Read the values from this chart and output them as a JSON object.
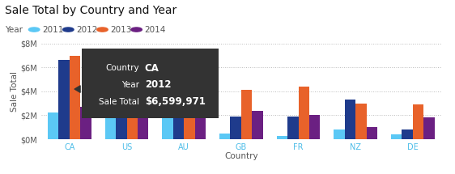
{
  "title": "Sale Total by Country and Year",
  "xlabel": "Country",
  "ylabel": "Sale Total",
  "categories": [
    "CA",
    "US",
    "AU",
    "GB",
    "FR",
    "NZ",
    "DE"
  ],
  "years": [
    "2011",
    "2012",
    "2013",
    "2014"
  ],
  "colors": [
    "#5BC8F5",
    "#1F3B8C",
    "#E8622A",
    "#6B2082"
  ],
  "values": {
    "CA": [
      2.2,
      6.6,
      7.0,
      2.7
    ],
    "US": [
      2.6,
      3.0,
      3.1,
      3.0
    ],
    "AU": [
      1.8,
      2.4,
      3.0,
      3.0
    ],
    "GB": [
      0.5,
      1.9,
      4.1,
      2.4
    ],
    "FR": [
      0.3,
      1.9,
      4.4,
      2.0
    ],
    "NZ": [
      0.8,
      3.3,
      3.0,
      1.0
    ],
    "DE": [
      0.4,
      0.8,
      2.9,
      1.8
    ]
  },
  "ylim": [
    0,
    8
  ],
  "yticks": [
    0,
    2,
    4,
    6,
    8
  ],
  "ytick_labels": [
    "$0M",
    "$2M",
    "$4M",
    "$6M",
    "$8M"
  ],
  "background_color": "#FFFFFF",
  "tooltip": {
    "country": "CA",
    "year": "2012",
    "sale_total": "$6,599,971",
    "bg_color": "#333333",
    "text_color": "#FFFFFF"
  },
  "title_fontsize": 10,
  "legend_fontsize": 7.5,
  "axis_fontsize": 7.5,
  "tick_fontsize": 7
}
